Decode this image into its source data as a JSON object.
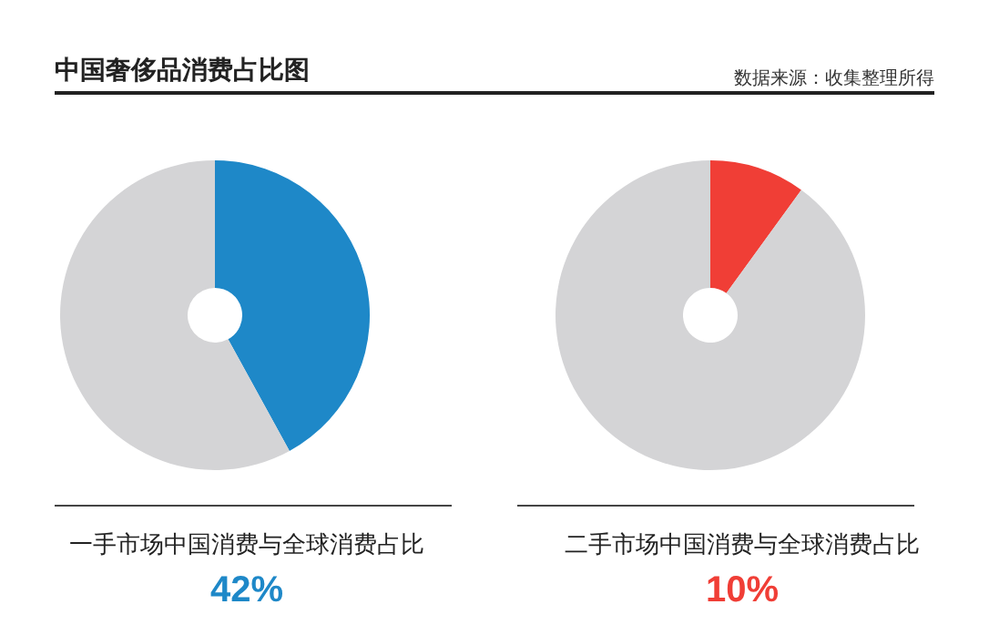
{
  "chart_data": [
    {
      "type": "donut",
      "title": "一手市场中国消费与全球消费占比",
      "categories": [
        null,
        null
      ],
      "values": [
        42,
        58
      ],
      "colors": [
        "#1e88c8",
        "#d4d4d6"
      ],
      "subtitle": "42%",
      "annotations": [
        "中国奢侈品消费占比图",
        "数据来源：收集整理所得"
      ]
    },
    {
      "type": "donut",
      "title": "二手市场中国消费与全球消费占比",
      "categories": [
        null,
        null
      ],
      "values": [
        10,
        90
      ],
      "colors": [
        "#f03e36",
        "#d4d4d6"
      ],
      "subtitle": "10%"
    }
  ]
}
